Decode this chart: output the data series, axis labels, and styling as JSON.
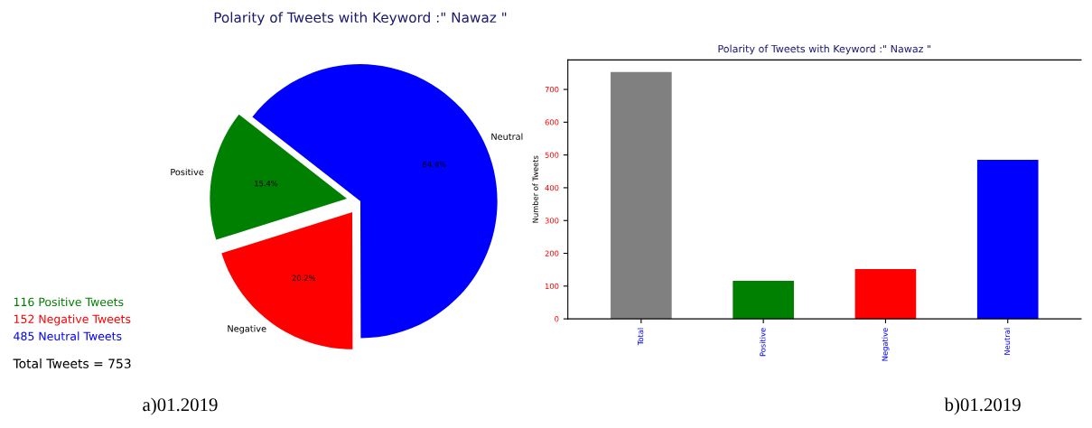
{
  "chart_data": [
    {
      "type": "pie",
      "title": "Polarity of Tweets with Keyword :\" Nawaz \"",
      "categories": [
        "Positive",
        "Negative",
        "Neutral"
      ],
      "values": [
        15.4,
        20.2,
        64.4
      ],
      "colors": [
        "#008000",
        "#ff0000",
        "#0000ff"
      ],
      "value_labels": [
        "15.4%",
        "20.2%",
        "64.4%"
      ],
      "annotations": [
        "116 Positive Tweets",
        "152 Negative Tweets",
        "485 Neutral Tweets",
        "Total Tweets = 753",
        "a)01.2019"
      ]
    },
    {
      "type": "bar",
      "title": "Polarity of Tweets with Keyword :\" Nawaz \"",
      "ylabel": "Number of Tweets",
      "categories": [
        "Total",
        "Positive",
        "Negative",
        "Neutral"
      ],
      "values": [
        753,
        116,
        152,
        485
      ],
      "colors": [
        "#808080",
        "#008000",
        "#ff0000",
        "#0000ff"
      ],
      "ylim": [
        0,
        790
      ],
      "yticks": [
        0,
        100,
        200,
        300,
        400,
        500,
        600,
        700
      ],
      "grid": false,
      "annotations": [
        "b)01.2019"
      ]
    }
  ]
}
